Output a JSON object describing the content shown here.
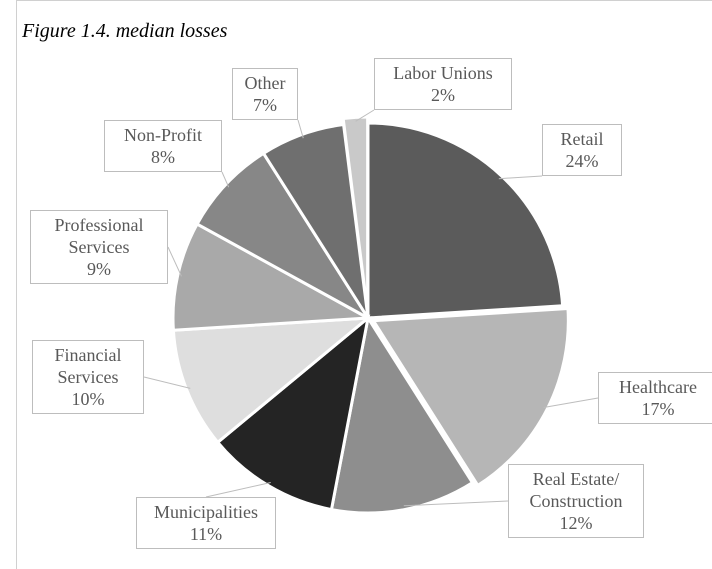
{
  "chart_data": {
    "type": "pie",
    "title": "Figure 1.4. median losses",
    "categories": [
      "Retail",
      "Healthcare",
      "Real Estate/ Construction",
      "Municipalities",
      "Financial Services",
      "Professional Services",
      "Non-Profit",
      "Other",
      "Labor Unions"
    ],
    "values": [
      24,
      17,
      12,
      11,
      10,
      9,
      8,
      7,
      2
    ],
    "value_labels": [
      "24%",
      "17%",
      "12%",
      "11%",
      "10%",
      "9%",
      "8%",
      "7%",
      "2%"
    ],
    "colors": [
      "#5b5b5b",
      "#b6b6b6",
      "#8e8e8e",
      "#242424",
      "#dedede",
      "#a9a9a9",
      "#878787",
      "#6f6f6f",
      "#c9c9c9"
    ]
  }
}
